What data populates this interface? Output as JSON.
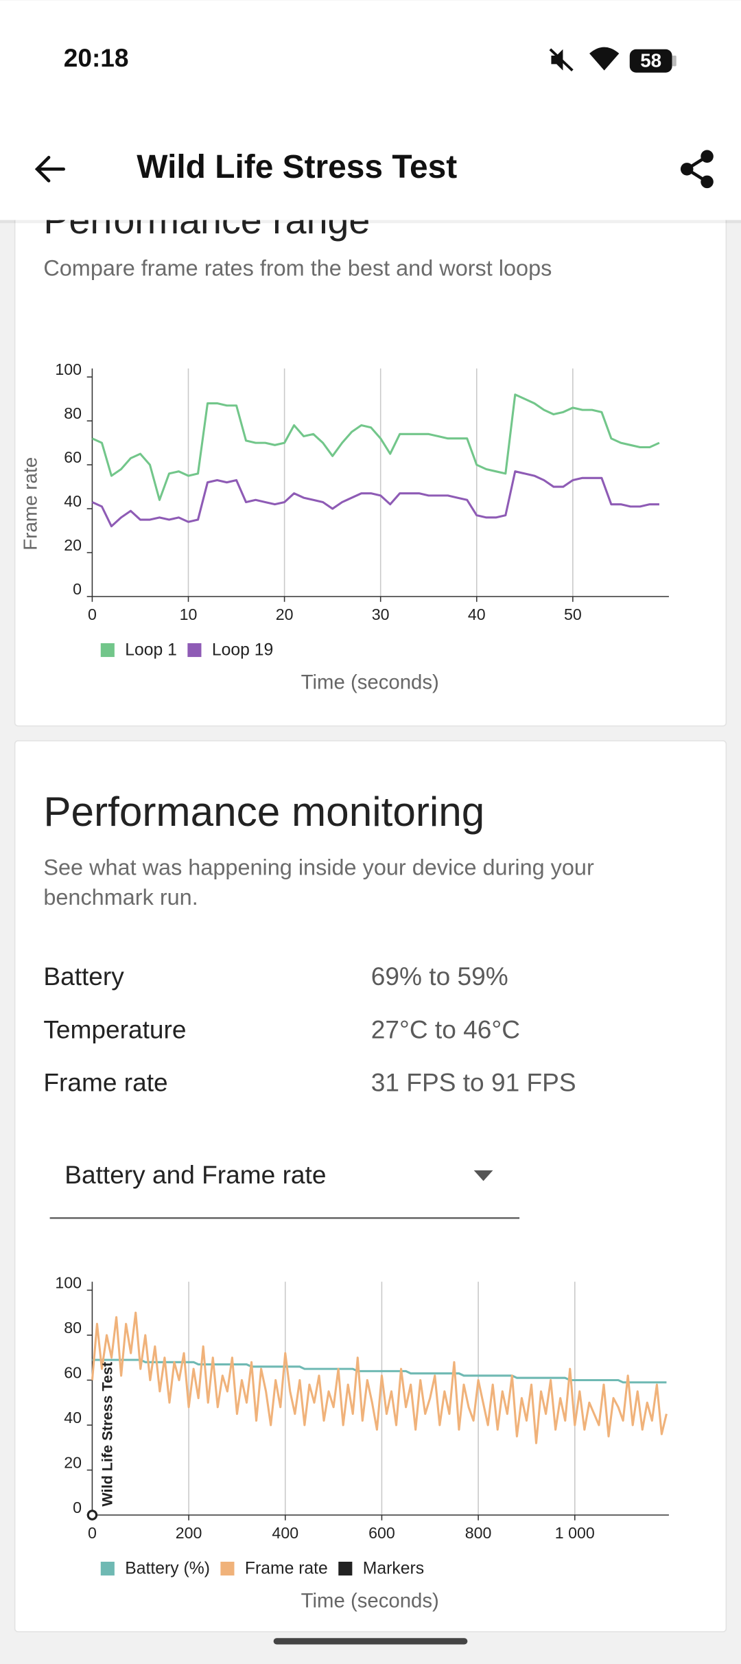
{
  "status_bar": {
    "time": "20:18",
    "battery": "58"
  },
  "app_bar": {
    "title": "Wild Life Stress Test"
  },
  "performance_range": {
    "title": "Performance range",
    "subtitle": "Compare frame rates from the best and worst loops"
  },
  "performance_monitoring": {
    "title": "Performance monitoring",
    "description_lines": [
      "See what was happening inside your device during your",
      "benchmark run."
    ],
    "rows": [
      {
        "label": "Battery",
        "value": "69% to 59%"
      },
      {
        "label": "Temperature",
        "value": "27°C to 46°C"
      },
      {
        "label": "Frame rate",
        "value": "31 FPS to 91 FPS"
      }
    ],
    "dropdown": "Battery and Frame rate"
  },
  "chart_data": [
    {
      "type": "line",
      "ylabel": "Frame rate",
      "xlabel": "Time (seconds)",
      "x": [
        0,
        1,
        2,
        3,
        4,
        5,
        6,
        7,
        8,
        9,
        10,
        11,
        12,
        13,
        14,
        15,
        16,
        17,
        18,
        19,
        20,
        21,
        22,
        23,
        24,
        25,
        26,
        27,
        28,
        29,
        30,
        31,
        32,
        33,
        34,
        35,
        36,
        37,
        38,
        39,
        40,
        41,
        42,
        43,
        44,
        45,
        46,
        47,
        48,
        49,
        50,
        51,
        52,
        53,
        54,
        55,
        56,
        57,
        58,
        59
      ],
      "series": [
        {
          "name": "Loop 1",
          "color": "#72c68a",
          "values": [
            72,
            70,
            55,
            58,
            63,
            65,
            60,
            44,
            56,
            57,
            55,
            56,
            88,
            88,
            87,
            87,
            71,
            70,
            70,
            69,
            70,
            78,
            73,
            74,
            70,
            64,
            70,
            75,
            78,
            77,
            72,
            65,
            74,
            74,
            74,
            74,
            73,
            72,
            72,
            72,
            60,
            58,
            57,
            56,
            92,
            90,
            88,
            85,
            83,
            84,
            86,
            85,
            85,
            84,
            72,
            70,
            69,
            68,
            68,
            70
          ]
        },
        {
          "name": "Loop 19",
          "color": "#8e5bb5",
          "values": [
            43,
            41,
            32,
            36,
            39,
            35,
            35,
            36,
            35,
            36,
            34,
            35,
            52,
            53,
            52,
            53,
            43,
            44,
            43,
            42,
            43,
            47,
            45,
            44,
            43,
            40,
            43,
            45,
            47,
            47,
            46,
            42,
            47,
            47,
            47,
            46,
            46,
            46,
            45,
            44,
            37,
            36,
            36,
            37,
            57,
            56,
            55,
            53,
            50,
            50,
            53,
            54,
            54,
            54,
            42,
            42,
            41,
            41,
            42,
            42
          ]
        }
      ],
      "xlim": [
        0,
        60
      ],
      "ylim": [
        0,
        100
      ],
      "xticks": [
        0,
        10,
        20,
        30,
        40,
        50
      ],
      "yticks": [
        0,
        20,
        40,
        60,
        80,
        100
      ],
      "grid": "x",
      "legend": "bottom-left"
    },
    {
      "type": "line",
      "xlabel": "Time (seconds)",
      "x": [
        0,
        10,
        20,
        30,
        40,
        50,
        60,
        70,
        80,
        90,
        100,
        110,
        120,
        130,
        140,
        150,
        160,
        170,
        180,
        190,
        200,
        210,
        220,
        230,
        240,
        250,
        260,
        270,
        280,
        290,
        300,
        310,
        320,
        330,
        340,
        350,
        360,
        370,
        380,
        390,
        400,
        410,
        420,
        430,
        440,
        450,
        460,
        470,
        480,
        490,
        500,
        510,
        520,
        530,
        540,
        550,
        560,
        570,
        580,
        590,
        600,
        610,
        620,
        630,
        640,
        650,
        660,
        670,
        680,
        690,
        700,
        710,
        720,
        730,
        740,
        750,
        760,
        770,
        780,
        790,
        800,
        810,
        820,
        830,
        840,
        850,
        860,
        870,
        880,
        890,
        900,
        910,
        920,
        930,
        940,
        950,
        960,
        970,
        980,
        990,
        1000,
        1010,
        1020,
        1030,
        1040,
        1050,
        1060,
        1070,
        1080,
        1090,
        1100,
        1110,
        1120,
        1130,
        1140,
        1150,
        1160,
        1170,
        1180,
        1190
      ],
      "series": [
        {
          "name": "Battery (%)",
          "color": "#6fb9b3",
          "values": [
            69,
            69,
            69,
            69,
            69,
            69,
            69,
            69,
            69,
            69,
            69,
            68,
            68,
            68,
            68,
            68,
            68,
            68,
            68,
            68,
            68,
            68,
            67,
            67,
            67,
            67,
            67,
            67,
            67,
            67,
            67,
            67,
            67,
            66,
            66,
            66,
            66,
            66,
            66,
            66,
            66,
            66,
            66,
            66,
            65,
            65,
            65,
            65,
            65,
            65,
            65,
            65,
            65,
            65,
            65,
            64,
            64,
            64,
            64,
            64,
            64,
            64,
            64,
            64,
            64,
            64,
            63,
            63,
            63,
            63,
            63,
            63,
            63,
            63,
            63,
            63,
            63,
            62,
            62,
            62,
            62,
            62,
            62,
            62,
            62,
            62,
            62,
            62,
            61,
            61,
            61,
            61,
            61,
            61,
            61,
            61,
            61,
            61,
            61,
            60,
            60,
            60,
            60,
            60,
            60,
            60,
            60,
            60,
            60,
            60,
            59,
            59,
            59,
            59,
            59,
            59,
            59,
            59,
            59,
            59
          ]
        },
        {
          "name": "Frame rate",
          "color": "#f0b27a",
          "values": [
            60,
            85,
            65,
            80,
            70,
            88,
            62,
            85,
            72,
            90,
            65,
            80,
            60,
            75,
            55,
            70,
            50,
            68,
            60,
            72,
            48,
            65,
            52,
            75,
            50,
            70,
            48,
            62,
            55,
            70,
            45,
            60,
            50,
            68,
            42,
            65,
            55,
            40,
            60,
            48,
            72,
            55,
            45,
            60,
            40,
            58,
            50,
            62,
            42,
            55,
            48,
            65,
            40,
            58,
            45,
            70,
            42,
            60,
            50,
            38,
            62,
            45,
            55,
            40,
            65,
            48,
            58,
            38,
            60,
            45,
            52,
            62,
            40,
            55,
            45,
            68,
            38,
            58,
            48,
            42,
            60,
            50,
            40,
            58,
            38,
            55,
            45,
            62,
            35,
            52,
            42,
            58,
            32,
            55,
            45,
            60,
            38,
            52,
            42,
            65,
            40,
            55,
            38,
            50,
            45,
            40,
            58,
            35,
            52,
            48,
            42,
            62,
            40,
            55,
            38,
            50,
            42,
            58,
            36,
            45
          ]
        }
      ],
      "markers": {
        "name": "Markers",
        "color": "#222222",
        "items": [
          {
            "x": 0,
            "label": "Wild Life Stress Test"
          }
        ]
      },
      "xlim": [
        0,
        1195
      ],
      "ylim": [
        0,
        100
      ],
      "xticks": [
        0,
        200,
        400,
        600,
        800,
        {
          "value": 1000,
          "label": "1 000"
        }
      ],
      "yticks": [
        0,
        20,
        40,
        60,
        80,
        100
      ],
      "grid": "x",
      "legend": "bottom-left"
    }
  ]
}
